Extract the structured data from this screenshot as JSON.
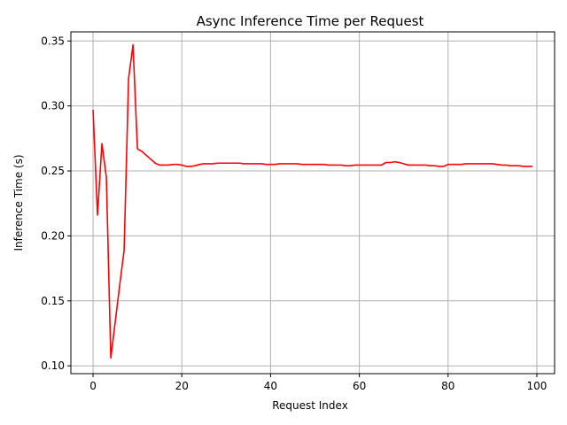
{
  "chart_data": {
    "type": "line",
    "title": "Async Inference Time per Request",
    "xlabel": "Request Index",
    "ylabel": "Inference Time (s)",
    "xlim": [
      -5,
      104
    ],
    "ylim": [
      0.094,
      0.357
    ],
    "xticks": [
      0,
      20,
      40,
      60,
      80,
      100
    ],
    "xtick_labels": [
      "0",
      "20",
      "40",
      "60",
      "80",
      "100"
    ],
    "yticks": [
      0.1,
      0.15,
      0.2,
      0.25,
      0.3,
      0.35
    ],
    "ytick_labels": [
      "0.10",
      "0.15",
      "0.20",
      "0.25",
      "0.30",
      "0.35"
    ],
    "grid": true,
    "series": [
      {
        "color": "#ff0000",
        "x": [
          0,
          1,
          2,
          3,
          4,
          5,
          6,
          7,
          8,
          9,
          10,
          11,
          12,
          13,
          14,
          15,
          16,
          17,
          18,
          19,
          20,
          21,
          22,
          23,
          24,
          25,
          26,
          27,
          28,
          29,
          30,
          31,
          32,
          33,
          34,
          35,
          36,
          37,
          38,
          39,
          40,
          41,
          42,
          43,
          44,
          45,
          46,
          47,
          48,
          49,
          50,
          51,
          52,
          53,
          54,
          55,
          56,
          57,
          58,
          59,
          60,
          61,
          62,
          63,
          64,
          65,
          66,
          67,
          68,
          69,
          70,
          71,
          72,
          73,
          74,
          75,
          76,
          77,
          78,
          79,
          80,
          81,
          82,
          83,
          84,
          85,
          86,
          87,
          88,
          89,
          90,
          91,
          92,
          93,
          94,
          95,
          96,
          97,
          98,
          99
        ],
        "values": [
          0.297,
          0.216,
          0.271,
          0.245,
          0.106,
          0.134,
          0.162,
          0.189,
          0.321,
          0.347,
          0.267,
          0.265,
          0.262,
          0.259,
          0.256,
          0.2545,
          0.2545,
          0.2545,
          0.255,
          0.255,
          0.2545,
          0.2535,
          0.2535,
          0.254,
          0.255,
          0.2555,
          0.2555,
          0.2555,
          0.256,
          0.256,
          0.256,
          0.256,
          0.256,
          0.256,
          0.2555,
          0.2555,
          0.2555,
          0.2555,
          0.2555,
          0.255,
          0.255,
          0.255,
          0.2555,
          0.2555,
          0.2555,
          0.2555,
          0.2555,
          0.255,
          0.255,
          0.255,
          0.255,
          0.255,
          0.255,
          0.2545,
          0.2545,
          0.2545,
          0.2545,
          0.254,
          0.254,
          0.2545,
          0.2545,
          0.2545,
          0.2545,
          0.2545,
          0.2545,
          0.2545,
          0.2565,
          0.2565,
          0.257,
          0.2565,
          0.2555,
          0.2545,
          0.2545,
          0.2545,
          0.2545,
          0.2545,
          0.254,
          0.254,
          0.2535,
          0.2535,
          0.255,
          0.255,
          0.255,
          0.255,
          0.2555,
          0.2555,
          0.2555,
          0.2555,
          0.2555,
          0.2555,
          0.2555,
          0.255,
          0.2545,
          0.2545,
          0.254,
          0.254,
          0.254,
          0.2535,
          0.2535,
          0.2535
        ]
      }
    ]
  }
}
